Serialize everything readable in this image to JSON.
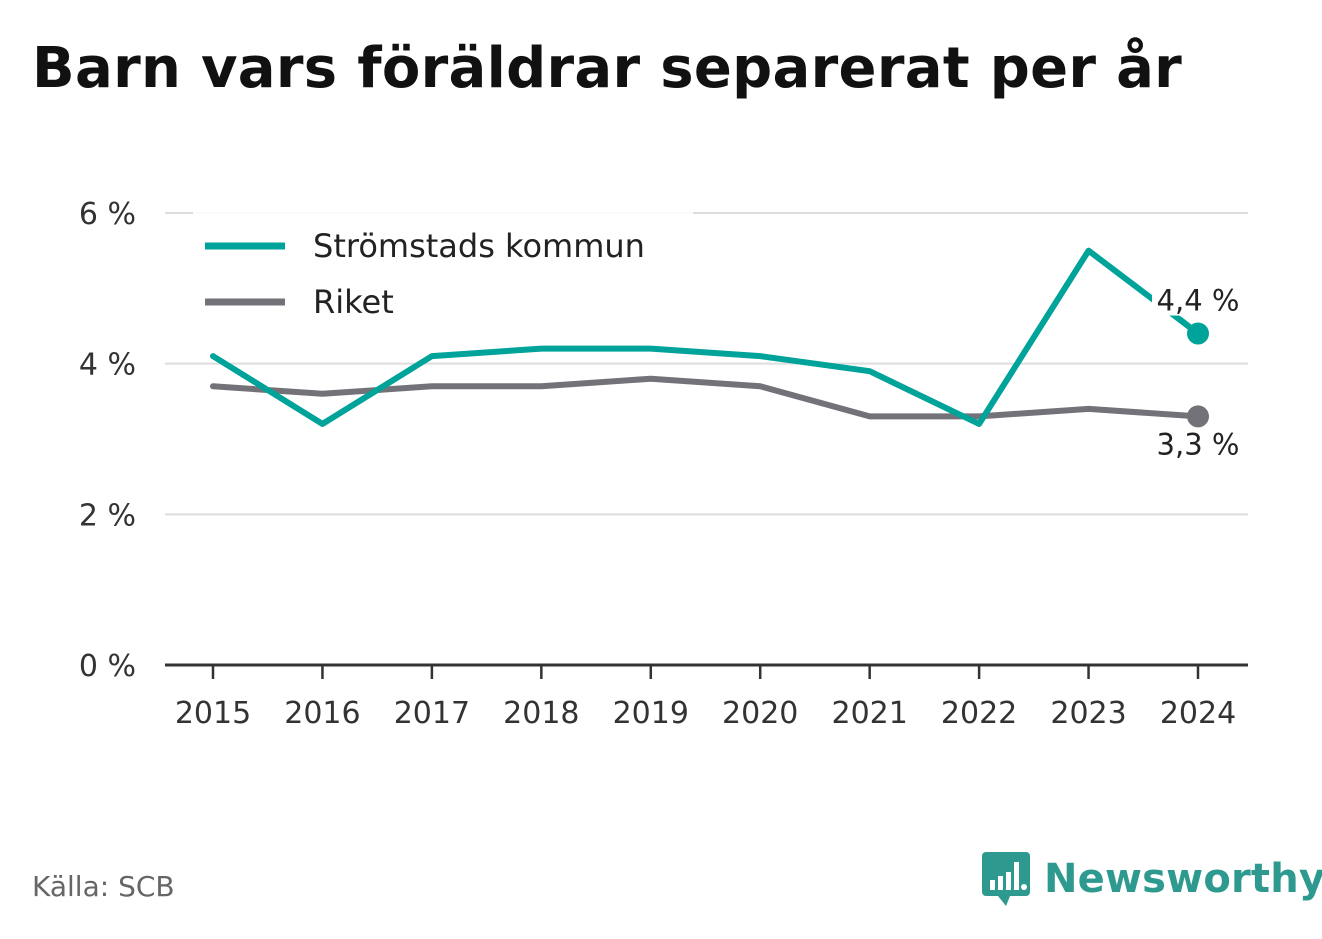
{
  "title": "Barn vars föräldrar separerat per år",
  "source": "Källa: SCB",
  "brand": {
    "name": "Newsworthy",
    "logo_icon": "bar-chart-speech-bubble-icon",
    "color": "#2e9a8f"
  },
  "chart_data": {
    "type": "line",
    "x": [
      "2015",
      "2016",
      "2017",
      "2018",
      "2019",
      "2020",
      "2021",
      "2022",
      "2023",
      "2024"
    ],
    "ylim": [
      0,
      6
    ],
    "yticks": [
      0,
      2,
      4,
      6
    ],
    "ytick_labels": [
      "0 %",
      "2 %",
      "4 %",
      "6 %"
    ],
    "grid": true,
    "legend_position": "top-left",
    "series": [
      {
        "name": "Strömstads kommun",
        "color": "#00a39a",
        "values": [
          4.1,
          3.2,
          4.1,
          4.2,
          4.2,
          4.1,
          3.9,
          3.2,
          5.5,
          4.4
        ],
        "end_label": "4,4 %"
      },
      {
        "name": "Riket",
        "color": "#737278",
        "values": [
          3.7,
          3.6,
          3.7,
          3.7,
          3.8,
          3.7,
          3.3,
          3.3,
          3.4,
          3.3
        ],
        "end_label": "3,3 %"
      }
    ]
  }
}
